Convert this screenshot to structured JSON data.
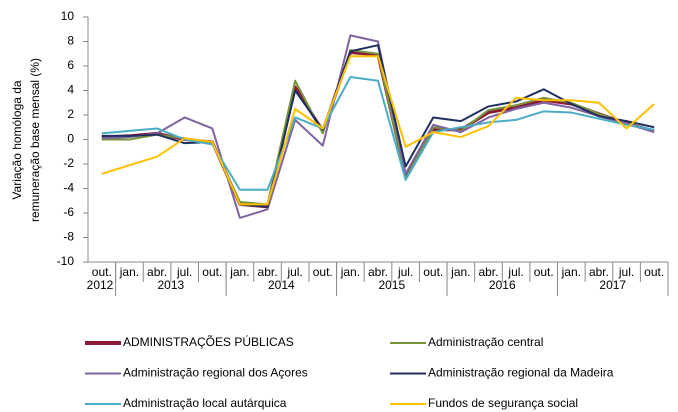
{
  "chart_data": {
    "type": "line",
    "y_label": [
      "Variação homóloga da",
      "remuneração base mensal (%)"
    ],
    "categories": [
      "out.",
      "jan.",
      "abr.",
      "jul.",
      "out.",
      "jan.",
      "abr.",
      "jul.",
      "out.",
      "jan.",
      "abr.",
      "jul.",
      "out.",
      "jan.",
      "abr.",
      "jul.",
      "out.",
      "jan.",
      "abr.",
      "jul.",
      "out."
    ],
    "x_groups": [
      {
        "label": "2012",
        "count": 1
      },
      {
        "label": "2013",
        "count": 4
      },
      {
        "label": "2014",
        "count": 4
      },
      {
        "label": "2015",
        "count": 4
      },
      {
        "label": "2016",
        "count": 4
      },
      {
        "label": "2017",
        "count": 4
      }
    ],
    "ylim": [
      -10,
      10
    ],
    "yticks": [
      -10,
      -8,
      -6,
      -4,
      -2,
      0,
      2,
      4,
      6,
      8,
      10
    ],
    "series": [
      {
        "name": "ADMINISTRAÇÕES PÚBLICAS",
        "color": "#8b1a3a",
        "values": [
          0.2,
          0.3,
          0.5,
          0,
          -0.2,
          -5.3,
          -5.5,
          4.3,
          0.7,
          7.1,
          6.9,
          -3,
          0.8,
          0.8,
          2.2,
          2.6,
          3.2,
          2.9,
          2.1,
          1.3,
          0.7
        ]
      },
      {
        "name": "Administração central",
        "color": "#77933c",
        "values": [
          0,
          0,
          0.4,
          0.1,
          -0.3,
          -5.1,
          -5.3,
          4.8,
          0.5,
          7.3,
          7.0,
          -3.2,
          1.0,
          0.7,
          2.4,
          2.8,
          3.4,
          3.0,
          2.1,
          1.3,
          0.7
        ]
      },
      {
        "name": "Administração regional dos Açores",
        "color": "#8064a2",
        "values": [
          0.1,
          0.2,
          0.5,
          1.8,
          0.9,
          -6.4,
          -5.7,
          1.6,
          -0.5,
          8.5,
          8.0,
          -2.8,
          1.2,
          0.6,
          1.8,
          2.5,
          3.0,
          2.6,
          1.9,
          1.3,
          0.6
        ]
      },
      {
        "name": "Administração regional da Madeira",
        "color": "#1f2f5f",
        "values": [
          0.3,
          0.3,
          0.4,
          -0.3,
          -0.2,
          -5.3,
          -5.5,
          4.0,
          0.8,
          7.2,
          7.7,
          -2.2,
          1.8,
          1.5,
          2.7,
          3.1,
          4.1,
          2.9,
          1.9,
          1.5,
          1.0
        ]
      },
      {
        "name": "Administração local autárquica",
        "color": "#4bacc6",
        "values": [
          0.5,
          0.7,
          0.9,
          0,
          -0.4,
          -4.1,
          -4.1,
          1.8,
          0.9,
          5.1,
          4.8,
          -3.3,
          0.6,
          1.0,
          1.4,
          1.6,
          2.3,
          2.2,
          1.7,
          1.2,
          0.8
        ]
      },
      {
        "name": "Fundos de segurança social",
        "color": "#ffc000",
        "values": [
          -2.8,
          -2.1,
          -1.4,
          0.1,
          -0.2,
          -5.3,
          -5.3,
          2.5,
          0.9,
          6.8,
          6.8,
          -0.6,
          0.6,
          0.2,
          1.1,
          3.4,
          3.2,
          3.2,
          3.0,
          0.9,
          2.9
        ]
      }
    ]
  }
}
